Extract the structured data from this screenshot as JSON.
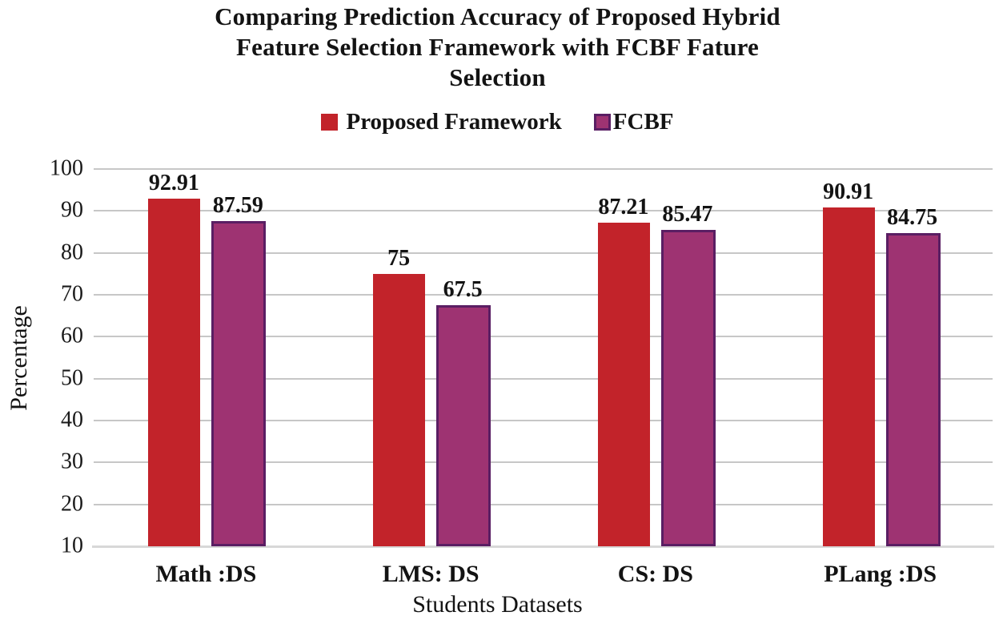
{
  "chart_data": {
    "type": "bar",
    "title": "Comparing Prediction Accuracy of Proposed Hybrid\nFeature Selection Framework with FCBF Fature\nSelection",
    "categories": [
      "Math :DS",
      "LMS: DS",
      "CS: DS",
      "PLang :DS"
    ],
    "series": [
      {
        "name": "Proposed Framework",
        "color": "#c2232a",
        "border_color": null,
        "values": [
          92.91,
          75,
          87.21,
          90.91
        ]
      },
      {
        "name": "FCBF",
        "color": "#9e3372",
        "border_color": "#5a1e63",
        "values": [
          87.59,
          67.5,
          85.47,
          84.75
        ]
      }
    ],
    "xlabel": "Students Datasets",
    "ylabel": "Percentage",
    "ylim": [
      10,
      100
    ],
    "yticks": [
      100,
      90,
      80,
      70,
      60,
      50,
      40,
      30,
      20,
      10
    ],
    "grid": true,
    "value_labels": true,
    "legend_position": "top"
  },
  "colors": {
    "gridline": "#c7c7c7",
    "axis_line": "#d8d8d8",
    "text": "#131313",
    "background": "#ffffff"
  }
}
